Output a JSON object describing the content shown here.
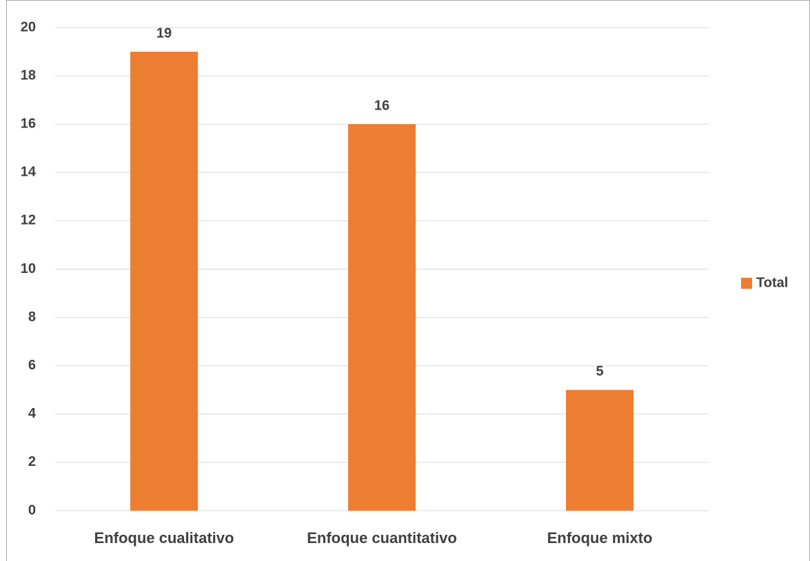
{
  "chart_data": {
    "type": "bar",
    "categories": [
      "Enfoque cualitativo",
      "Enfoque cuantitativo",
      "Enfoque mixto"
    ],
    "series": [
      {
        "name": "Total",
        "color": "#ed7d31",
        "values": [
          19,
          16,
          5
        ]
      }
    ],
    "ylim": [
      0,
      20
    ],
    "yticks": [
      0,
      2,
      4,
      6,
      8,
      10,
      12,
      14,
      16,
      18,
      20
    ],
    "grid": true,
    "data_labels": true,
    "legend": "right"
  }
}
